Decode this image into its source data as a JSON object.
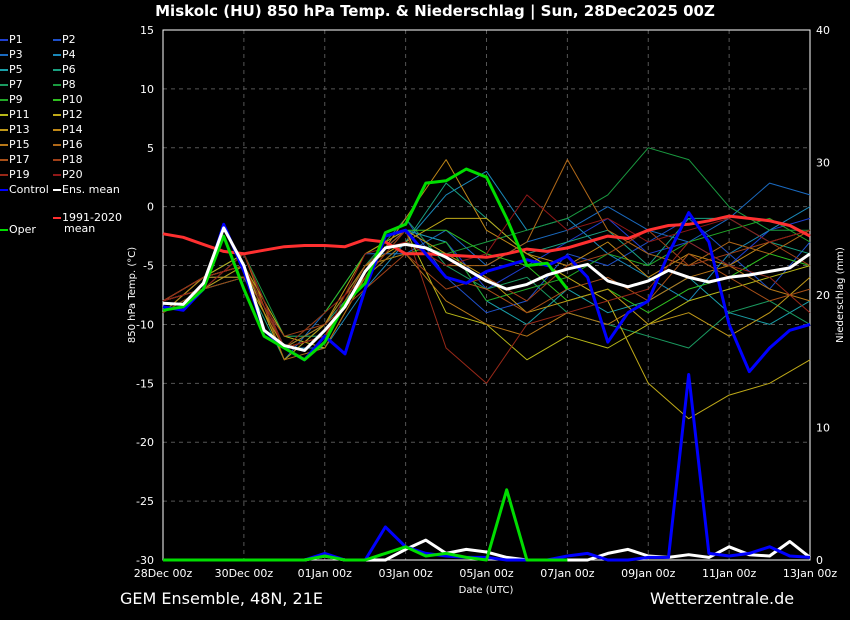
{
  "title": "Miskolc  (HU)  850 hPa Temp. & Niederschlag | Sun, 28Dec2025 00Z",
  "footer_left": "GEM Ensemble, 48N, 21E",
  "footer_right": "Wetterzentrale.de",
  "legend": {
    "members": [
      "P1",
      "P2",
      "P3",
      "P4",
      "P5",
      "P6",
      "P7",
      "P8",
      "P9",
      "P10",
      "P11",
      "P12",
      "P13",
      "P14",
      "P15",
      "P16",
      "P17",
      "P18",
      "P19",
      "P20"
    ],
    "control": "Control",
    "ens_mean": "Ens. mean",
    "climate_line1": "1991-2020",
    "climate_line2": "mean",
    "oper": "Oper"
  },
  "colors": {
    "members": [
      "#1f3fd0",
      "#1e50c8",
      "#1a6ac0",
      "#1a88b8",
      "#1a9fa8",
      "#1aa080",
      "#1a9a60",
      "#1a9a40",
      "#22a828",
      "#30c020",
      "#b8b818",
      "#c0aa18",
      "#c09818",
      "#c08818",
      "#b87818",
      "#b06818",
      "#a85018",
      "#a04018",
      "#982818",
      "#901818"
    ],
    "control": "#0000ff",
    "ens_mean": "#ffffff",
    "climate": "#ff3030",
    "oper": "#00dd00",
    "grid": "#555555"
  },
  "chart_data": {
    "type": "line",
    "xlabel": "Date (UTC)",
    "ylabel": "850 hPa Temp. (°C)",
    "ylabel_right": "Niederschlag (mm)",
    "x_ticks": [
      "28Dec 00z",
      "30Dec 00z",
      "01Jan 00z",
      "03Jan 00z",
      "05Jan 00z",
      "07Jan 00z",
      "09Jan 00z",
      "11Jan 00z",
      "13Jan 00z"
    ],
    "x_range_days": [
      0,
      16
    ],
    "ylim": [
      -30,
      15
    ],
    "y_ticks": [
      15,
      10,
      5,
      0,
      -5,
      -10,
      -15,
      -20,
      -25,
      -30
    ],
    "ylim_right": [
      0,
      40
    ],
    "y_ticks_right": [
      40,
      30,
      20,
      10,
      0
    ],
    "grid": true,
    "time_step_hours_main": 12,
    "time_step_hours_members": 24,
    "temperature": {
      "ens_mean": [
        -8.2,
        -8.3,
        -6.5,
        -1.8,
        -5,
        -10.5,
        -11.8,
        -12.2,
        -10.5,
        -8.5,
        -5.5,
        -3.5,
        -3.2,
        -3.5,
        -4.3,
        -5.3,
        -6.3,
        -7,
        -6.6,
        -5.8,
        -5.3,
        -4.9,
        -6.3,
        -6.8,
        -6.3,
        -5.4,
        -6,
        -6.4,
        -6,
        -5.8,
        -5.5,
        -5.2,
        -4
      ],
      "control": [
        -8.5,
        -8.8,
        -7,
        -1.5,
        -5.5,
        -10.5,
        -12,
        -13,
        -11,
        -12.5,
        -7,
        -2.5,
        -2,
        -4,
        -6,
        -6.5,
        -5.5,
        -5,
        -4.5,
        -5,
        -4.2,
        -6,
        -11.5,
        -9,
        -8,
        -4,
        -0.5,
        -3,
        -10,
        -14,
        -12,
        -10.5,
        -10
      ],
      "oper": [
        -8.8,
        -8.5,
        -7,
        -2.5,
        -7,
        -11,
        -12,
        -13,
        -11.5,
        -8.2,
        -6.5,
        -2.2,
        -1.5,
        2,
        2.2,
        3.2,
        2.5,
        -1,
        -5,
        -4.8,
        -7,
        null,
        null,
        null,
        null,
        null,
        null,
        null,
        null,
        null,
        null,
        null,
        null
      ],
      "climate_mean": [
        -2.3,
        -2.6,
        -3.2,
        -3.8,
        -4,
        -3.7,
        -3.4,
        -3.3,
        -3.3,
        -3.4,
        -2.8,
        -3,
        -4,
        -4,
        -4.1,
        -4.2,
        -4.3,
        -4,
        -3.6,
        -3.8,
        -3.5,
        -3,
        -2.5,
        -2.7,
        -2,
        -1.6,
        -1.5,
        -1.2,
        -0.8,
        -1,
        -1.2,
        -1.6,
        -2.5
      ],
      "members": [
        [
          -8,
          -6,
          -4,
          -12,
          -10,
          -5,
          -2,
          -3,
          -7,
          -5,
          -3,
          -1,
          -4,
          -3,
          -5,
          -2,
          -1
        ],
        [
          -9,
          -7,
          -6,
          -11,
          -11,
          -6,
          -1,
          -6,
          -9,
          -8,
          -4,
          -5,
          -3,
          -1,
          -4,
          -7,
          -3
        ],
        [
          -8,
          -6,
          -5,
          -13,
          -9,
          -4,
          -4,
          -2,
          -5,
          -3,
          -2,
          0,
          -2,
          -3,
          -1,
          2,
          1
        ],
        [
          -8,
          -7,
          -4,
          -12,
          -12,
          -7,
          -3,
          1,
          3,
          -2,
          -1,
          -4,
          -6,
          -8,
          -4,
          -2,
          0
        ],
        [
          -9,
          -6,
          -5,
          -12,
          -11,
          -5,
          -2,
          -3,
          -8,
          -10,
          -7,
          -9,
          -8,
          -6,
          -9,
          -10,
          -8
        ],
        [
          -8,
          -6,
          -6,
          -13,
          -10,
          -6,
          -3,
          2,
          -1,
          -4,
          -3,
          -2,
          -5,
          -1,
          -1,
          -3,
          -4
        ],
        [
          -8,
          -7,
          -5,
          -12,
          -10,
          -5,
          -1,
          -5,
          -7,
          -6,
          -9,
          -10,
          -11,
          -12,
          -9,
          -8,
          -10
        ],
        [
          -9,
          -6,
          -4,
          -11,
          -11,
          -6,
          -3,
          -4,
          -3,
          -2,
          -1,
          1,
          5,
          4,
          0,
          -2,
          -2
        ],
        [
          -8,
          -6,
          -5,
          -13,
          -10,
          -5,
          -4,
          -3,
          -8,
          -7,
          -6,
          -4,
          -5,
          -3,
          -2,
          -1,
          -3
        ],
        [
          -9,
          -7,
          -6,
          -12,
          -9,
          -4,
          -2,
          -2,
          -4,
          -5,
          -8,
          -7,
          -9,
          -7,
          -6,
          -4,
          -5
        ],
        [
          -8,
          -6,
          -5,
          -11,
          -12,
          -6,
          -2,
          -9,
          -10,
          -13,
          -11,
          -12,
          -10,
          -8,
          -7,
          -6,
          -5
        ],
        [
          -9,
          -6,
          -4,
          -12,
          -11,
          -5,
          -3,
          -1,
          -1,
          -4,
          -6,
          -8,
          -15,
          -18,
          -16,
          -15,
          -13
        ],
        [
          -8,
          -7,
          -5,
          -13,
          -10,
          -4,
          -2,
          -4,
          -6,
          -9,
          -8,
          -7,
          -10,
          -9,
          -11,
          -9,
          -6
        ],
        [
          -8,
          -6,
          -6,
          -12,
          -11,
          -6,
          -1,
          4,
          -2,
          -4,
          -5,
          -3,
          -6,
          -4,
          -5,
          -3,
          -2
        ],
        [
          -9,
          -6,
          -5,
          -12,
          -10,
          -5,
          -4,
          -8,
          -10,
          -11,
          -9,
          -10,
          -8,
          -6,
          -5,
          -7,
          -8
        ],
        [
          -8,
          -7,
          -4,
          -13,
          -12,
          -6,
          -3,
          -5,
          -5,
          -3,
          4,
          -2,
          -4,
          -5,
          -3,
          -4,
          -2
        ],
        [
          -8,
          -6,
          -5,
          -12,
          -11,
          -5,
          -2,
          -6,
          -7,
          -9,
          -7,
          -6,
          -8,
          -4,
          -6,
          -8,
          -7
        ],
        [
          -9,
          -7,
          -6,
          -11,
          -10,
          -7,
          -4,
          -7,
          -6,
          -8,
          -5,
          -4,
          -2,
          -5,
          -4,
          -3,
          -5
        ],
        [
          -8,
          -6,
          -5,
          -12,
          -9,
          -6,
          -2,
          -12,
          -15,
          -10,
          -9,
          -8,
          -7,
          -3,
          -5,
          -6,
          -9
        ],
        [
          -8,
          -7,
          -4,
          -12,
          -11,
          -4,
          -3,
          -5,
          -4,
          1,
          -2,
          -1,
          -3,
          -2,
          -1,
          -3,
          -2
        ]
      ]
    },
    "precipitation_mm": {
      "ens_mean": [
        0,
        0,
        0,
        0,
        0,
        0,
        0,
        0,
        0.3,
        0,
        0,
        0,
        0.8,
        1.5,
        0.5,
        0.8,
        0.6,
        0.2,
        0,
        0,
        0,
        0,
        0.5,
        0.8,
        0.3,
        0.2,
        0.4,
        0.2,
        1,
        0.4,
        0.3,
        1.4,
        0.2
      ],
      "control": [
        0,
        0,
        0,
        0,
        0,
        0,
        0,
        0,
        0.5,
        0,
        0,
        2.5,
        1,
        0.5,
        0.3,
        0.2,
        0.2,
        0,
        0,
        0,
        0.3,
        0.5,
        0,
        0,
        0.2,
        0.2,
        14,
        0.5,
        0.3,
        0.5,
        1,
        0.3,
        0.2
      ],
      "oper": [
        0,
        0,
        0,
        0,
        0,
        0,
        0,
        0,
        0.3,
        0,
        0,
        0.5,
        1,
        0.3,
        0.5,
        0.2,
        0,
        5.3,
        0,
        0,
        0,
        null,
        null,
        null,
        null,
        null,
        null,
        null,
        null,
        null,
        null,
        null,
        null
      ]
    }
  }
}
